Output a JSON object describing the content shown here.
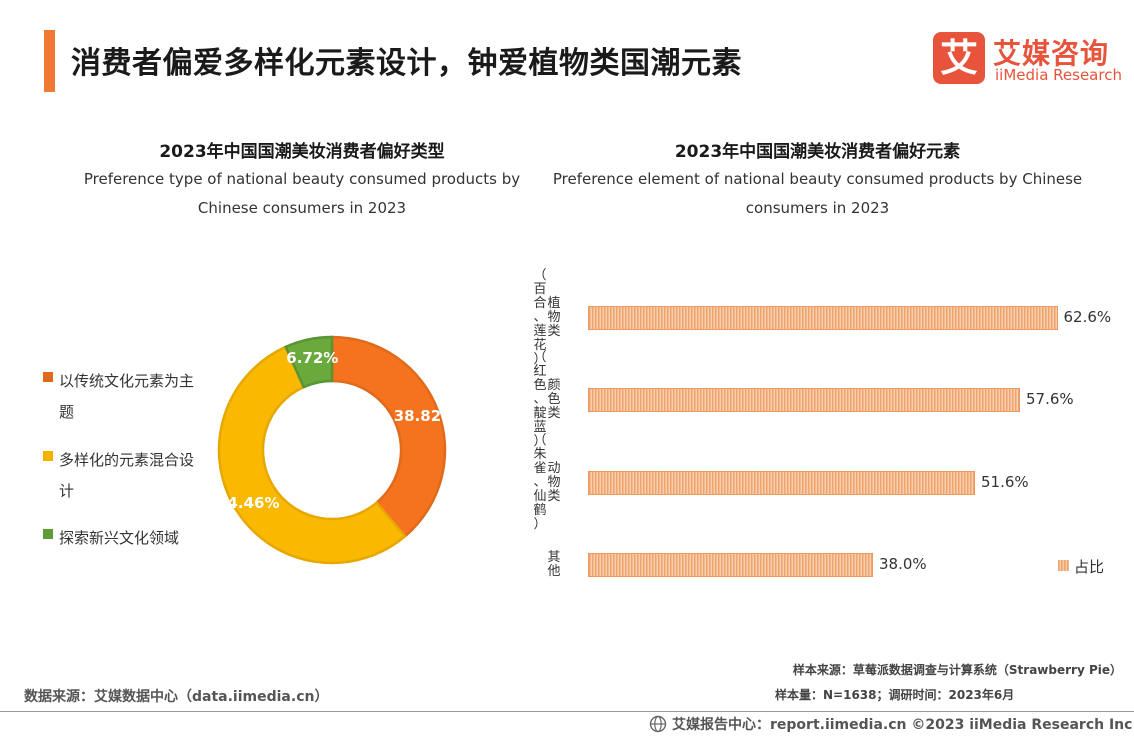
{
  "header": {
    "title": "消费者偏爱多样化元素设计，钟爱植物类国潮元素",
    "logo_glyph": "艾",
    "logo_cn": "艾媒咨询",
    "logo_en": "iiMedia Research"
  },
  "colors": {
    "accent": "#f07a35",
    "brand": "#e8533b"
  },
  "chart_data": [
    {
      "type": "pie",
      "title": "2023年中国国潮美妆消费者偏好类型",
      "subtitle": "Preference type of  national beauty  consumed products by Chinese consumers in 2023",
      "slices": [
        {
          "label": "以传统文化元素为主题",
          "value": 38.82,
          "display": "38.82%",
          "color": "#f5731f"
        },
        {
          "label": "多样化的元素混合设计",
          "value": 54.46,
          "display": "54.46%",
          "color": "#fbb800"
        },
        {
          "label": "探索新兴文化领域",
          "value": 6.72,
          "display": "6.72%",
          "color": "#6aaa3d"
        }
      ],
      "legend_position": "left"
    },
    {
      "type": "bar",
      "orientation": "horizontal",
      "title": "2023年中国国潮美妆消费者偏好元素",
      "subtitle": "Preference element of  national beauty  consumed products by Chinese consumers in 2023",
      "categories": [
        {
          "name": "植物类",
          "note": "（百合、莲花）"
        },
        {
          "name": "颜色类",
          "note": "（红色、靛蓝）"
        },
        {
          "name": "动物类",
          "note": "（朱雀、仙鹤）"
        },
        {
          "name": "其他",
          "note": ""
        }
      ],
      "series": [
        {
          "name": "占比",
          "values": [
            62.6,
            57.6,
            51.6,
            38.0
          ],
          "labels": [
            "62.6%",
            "57.6%",
            "51.6%",
            "38.0%"
          ],
          "color": "#f0a36c"
        }
      ],
      "xlim": [
        0,
        100
      ],
      "legend_position": "right"
    }
  ],
  "footer": {
    "sample_source": "样本来源：草莓派数据调查与计算系统（Strawberry Pie）",
    "sample_size": "样本量：N=1638；调研时间：2023年6月",
    "data_source": "数据来源：艾媒数据中心（data.iimedia.cn）",
    "center_text": "艾媒报告中心：report.iimedia.cn  ©2023  iiMedia Research  Inc"
  }
}
